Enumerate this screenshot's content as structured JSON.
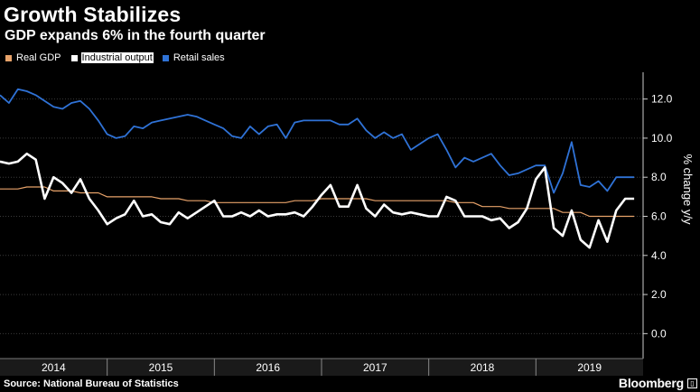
{
  "header": {
    "title": "Growth Stabilizes",
    "subtitle": "GDP expands 6% in the fourth quarter"
  },
  "legend": [
    {
      "label": "Real GDP",
      "color": "#e8a36a"
    },
    {
      "label": "Industrial output",
      "color": "#ffffff"
    },
    {
      "label": "Retail sales",
      "color": "#2f72d6"
    }
  ],
  "footer": {
    "source": "Source: National Bureau of Statistics",
    "brand": "Bloomberg",
    "brand_icon": "bloomberg-logo-icon"
  },
  "chart_data": {
    "type": "line",
    "title": "Growth Stabilizes",
    "subtitle": "GDP expands 6% in the fourth quarter",
    "ylabel": "% change y/y",
    "ylim": [
      -1.0,
      13.0
    ],
    "yticks": [
      0.0,
      2.0,
      4.0,
      6.0,
      8.0,
      10.0,
      12.0
    ],
    "ytick_labels": [
      "0.0",
      "2.0",
      "4.0",
      "6.0",
      "8.0",
      "10.0",
      "12.0"
    ],
    "xlim": [
      2014.0,
      2020.0
    ],
    "years": [
      "2014",
      "2015",
      "2016",
      "2017",
      "2018",
      "2019"
    ],
    "x_start": 2014.0,
    "x_step": 0.0833333,
    "grid": true,
    "legend_position": "top-left",
    "series": [
      {
        "name": "Real GDP",
        "color": "#e8a36a",
        "values": [
          7.4,
          7.4,
          7.4,
          7.5,
          7.5,
          7.5,
          7.3,
          7.3,
          7.3,
          7.2,
          7.2,
          7.2,
          7.0,
          7.0,
          7.0,
          7.0,
          7.0,
          7.0,
          6.9,
          6.9,
          6.9,
          6.8,
          6.8,
          6.8,
          6.7,
          6.7,
          6.7,
          6.7,
          6.7,
          6.7,
          6.7,
          6.7,
          6.7,
          6.8,
          6.8,
          6.8,
          6.9,
          6.9,
          6.9,
          6.9,
          6.9,
          6.9,
          6.8,
          6.8,
          6.8,
          6.8,
          6.8,
          6.8,
          6.8,
          6.8,
          6.8,
          6.7,
          6.7,
          6.7,
          6.5,
          6.5,
          6.5,
          6.4,
          6.4,
          6.4,
          6.4,
          6.4,
          6.4,
          6.2,
          6.2,
          6.2,
          6.0,
          6.0,
          6.0,
          6.0,
          6.0,
          6.0
        ]
      },
      {
        "name": "Industrial output",
        "color": "#ffffff",
        "values": [
          8.8,
          8.7,
          8.8,
          9.2,
          8.9,
          6.9,
          8.0,
          7.7,
          7.2,
          7.9,
          6.9,
          6.3,
          5.6,
          5.9,
          6.1,
          6.8,
          6.0,
          6.1,
          5.7,
          5.6,
          6.2,
          5.9,
          6.2,
          6.5,
          6.8,
          6.0,
          6.0,
          6.2,
          6.0,
          6.3,
          6.0,
          6.1,
          6.1,
          6.2,
          6.0,
          6.5,
          7.1,
          7.6,
          6.5,
          6.5,
          7.6,
          6.4,
          6.0,
          6.6,
          6.2,
          6.1,
          6.2,
          6.1,
          6.0,
          6.0,
          7.0,
          6.8,
          6.0,
          6.0,
          6.0,
          5.8,
          5.9,
          5.4,
          5.7,
          6.4,
          7.9,
          8.5,
          5.4,
          5.0,
          6.3,
          4.8,
          4.4,
          5.8,
          4.7,
          6.3,
          6.9,
          6.9
        ]
      },
      {
        "name": "Retail sales",
        "color": "#2f72d6",
        "values": [
          12.2,
          11.8,
          12.5,
          12.4,
          12.2,
          11.9,
          11.6,
          11.5,
          11.8,
          11.9,
          11.5,
          10.9,
          10.2,
          10.0,
          10.1,
          10.6,
          10.5,
          10.8,
          10.9,
          11.0,
          11.1,
          11.2,
          11.1,
          10.9,
          10.7,
          10.5,
          10.1,
          10.0,
          10.6,
          10.2,
          10.6,
          10.7,
          10.0,
          10.8,
          10.9,
          10.9,
          10.9,
          10.9,
          10.7,
          10.7,
          11.0,
          10.4,
          10.0,
          10.3,
          10.0,
          10.2,
          9.4,
          9.7,
          10.0,
          10.2,
          9.4,
          8.5,
          9.0,
          8.8,
          9.0,
          9.2,
          8.6,
          8.1,
          8.2,
          8.4,
          8.6,
          8.6,
          7.2,
          8.2,
          9.8,
          7.6,
          7.5,
          7.8,
          7.3,
          8.0,
          8.0,
          8.0
        ]
      }
    ]
  }
}
